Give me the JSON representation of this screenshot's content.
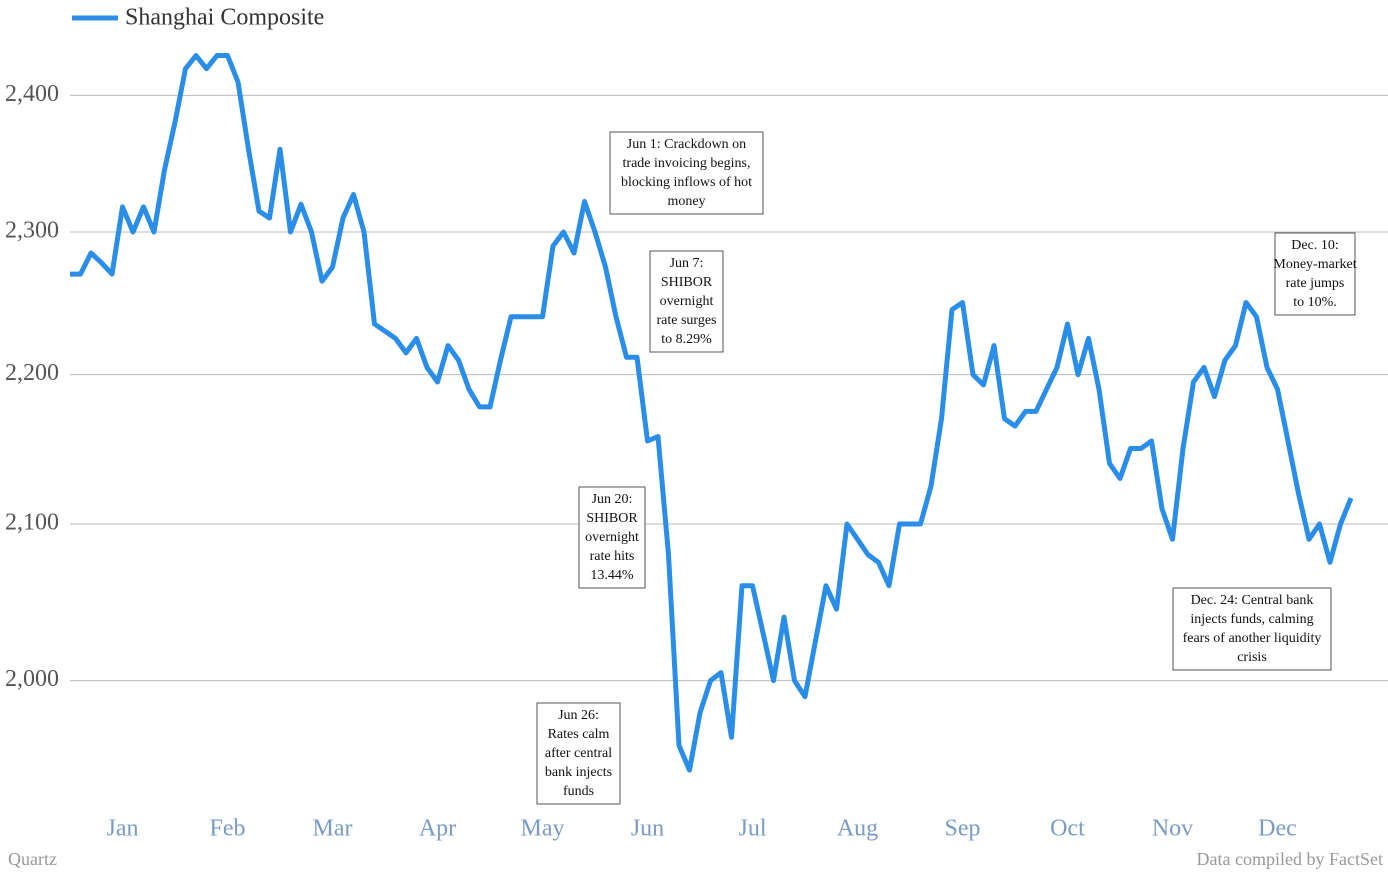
{
  "chart_data": {
    "type": "line",
    "log_scale": true,
    "grid": true,
    "legend_position": "top-left",
    "categories": [
      null,
      null,
      null,
      null,
      null,
      "Jan",
      null,
      null,
      null,
      null,
      null,
      null,
      null,
      null,
      null,
      "Feb",
      null,
      null,
      null,
      null,
      null,
      null,
      null,
      null,
      null,
      "Mar",
      null,
      null,
      null,
      null,
      null,
      null,
      null,
      null,
      null,
      "Apr",
      null,
      null,
      null,
      null,
      null,
      null,
      null,
      null,
      null,
      "May",
      null,
      null,
      null,
      null,
      null,
      null,
      null,
      null,
      null,
      "Jun",
      null,
      null,
      null,
      null,
      null,
      null,
      null,
      null,
      null,
      "Jul",
      null,
      null,
      null,
      null,
      null,
      null,
      null,
      null,
      null,
      "Aug",
      null,
      null,
      null,
      null,
      null,
      null,
      null,
      null,
      null,
      "Sep",
      null,
      null,
      null,
      null,
      null,
      null,
      null,
      null,
      null,
      "Oct",
      null,
      null,
      null,
      null,
      null,
      null,
      null,
      null,
      null,
      "Nov",
      null,
      null,
      null,
      null,
      null,
      null,
      null,
      null,
      null,
      "Dec",
      null,
      null,
      null,
      null,
      null,
      null,
      null
    ],
    "series": [
      {
        "name": "Shanghai Composite",
        "color": "#2a8ee8",
        "values": [
          2270,
          2270,
          2285,
          2278,
          2270,
          2318,
          2300,
          2318,
          2300,
          2345,
          2380,
          2420,
          2430,
          2420,
          2430,
          2430,
          2410,
          2360,
          2315,
          2310,
          2360,
          2300,
          2320,
          2300,
          2265,
          2275,
          2310,
          2327,
          2300,
          2235,
          2230,
          2225,
          2215,
          2225,
          2205,
          2195,
          2220,
          2210,
          2190,
          2178,
          2178,
          2210,
          2240,
          2240,
          2240,
          2240,
          2290,
          2300,
          2285,
          2322,
          2300,
          2275,
          2240,
          2212,
          2212,
          2155,
          2158,
          2080,
          1960,
          1945,
          1980,
          2000,
          2005,
          1965,
          2060,
          2060,
          2030,
          2000,
          2040,
          2000,
          1990,
          2025,
          2060,
          2045,
          2100,
          2090,
          2080,
          2075,
          2060,
          2100,
          2100,
          2100,
          2125,
          2170,
          2245,
          2250,
          2200,
          2193,
          2220,
          2170,
          2165,
          2175,
          2175,
          2190,
          2205,
          2235,
          2200,
          2225,
          2190,
          2140,
          2130,
          2150,
          2150,
          2155,
          2110,
          2090,
          2150,
          2195,
          2205,
          2185,
          2210,
          2220,
          2250,
          2240,
          2205,
          2190,
          2155,
          2120,
          2090,
          2100,
          2075,
          2100,
          2117
        ]
      }
    ],
    "ylim": [
      1921,
      2457
    ],
    "yticks": [
      {
        "value": 2000,
        "label": "2,000"
      },
      {
        "value": 2100,
        "label": "2,100"
      },
      {
        "value": 2200,
        "label": "2,200"
      },
      {
        "value": 2300,
        "label": "2,300"
      },
      {
        "value": 2400,
        "label": "2,400"
      }
    ],
    "annotations": [
      {
        "lines": [
          "Jun 1: Crackdown on",
          "trade invoicing begins,",
          "blocking inflows of hot",
          "money"
        ]
      },
      {
        "lines": [
          "Jun 7:",
          "SHIBOR",
          "overnight",
          "rate surges",
          "to 8.29%"
        ]
      },
      {
        "lines": [
          "Jun 20:",
          "SHIBOR",
          "overnight",
          "rate hits",
          "13.44%"
        ]
      },
      {
        "lines": [
          "Jun 26:",
          "Rates calm",
          "after central",
          "bank injects",
          "funds"
        ]
      },
      {
        "lines": [
          "Dec. 10:",
          "Money-market",
          "rate jumps",
          "to 10%."
        ]
      },
      {
        "lines": [
          "Dec. 24: Central bank",
          "injects funds, calming",
          "fears of another liquidity",
          "crisis"
        ]
      }
    ],
    "source_left": "Quartz",
    "source_right": "Data compiled by FactSet"
  }
}
